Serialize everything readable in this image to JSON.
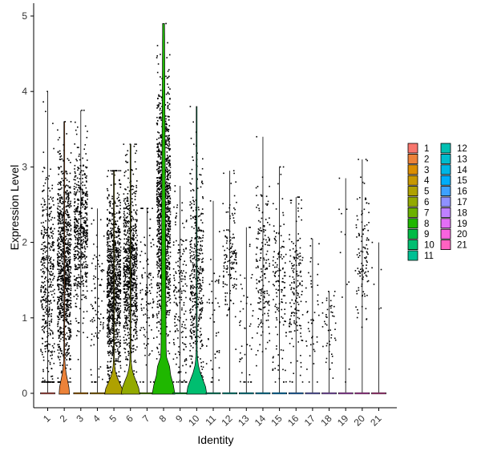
{
  "chart_data": {
    "type": "violin",
    "xlabel": "Identity",
    "ylabel": "Expression Level",
    "ylim": [
      0,
      5
    ],
    "yticks": [
      0,
      1,
      2,
      3,
      4,
      5
    ],
    "categories": [
      "1",
      "2",
      "3",
      "4",
      "5",
      "6",
      "7",
      "8",
      "9",
      "10",
      "11",
      "12",
      "13",
      "14",
      "15",
      "16",
      "17",
      "18",
      "19",
      "20",
      "21"
    ],
    "max_expression": [
      4.0,
      3.6,
      3.75,
      2.45,
      2.95,
      3.3,
      2.45,
      4.9,
      2.75,
      3.8,
      2.55,
      2.95,
      2.2,
      3.4,
      3.0,
      2.6,
      2.05,
      1.35,
      2.85,
      3.1,
      2.0
    ],
    "violin_width": [
      0.0,
      0.3,
      0.0,
      0.0,
      0.55,
      0.55,
      0.0,
      0.6,
      0.0,
      0.6,
      0.0,
      0.0,
      0.0,
      0.0,
      0.0,
      0.0,
      0.0,
      0.0,
      0.0,
      0.0,
      0.0
    ],
    "point_count": [
      420,
      950,
      520,
      90,
      1000,
      820,
      120,
      1150,
      180,
      420,
      45,
      140,
      45,
      170,
      140,
      160,
      45,
      45,
      12,
      110,
      6
    ],
    "point_mean": [
      1.5,
      1.6,
      2.1,
      1.2,
      1.4,
      1.6,
      1.3,
      2.4,
      1.2,
      1.5,
      1.1,
      1.8,
      1.0,
      1.6,
      1.4,
      1.4,
      0.9,
      0.8,
      1.5,
      1.9,
      1.0
    ],
    "point_sd": [
      0.8,
      0.7,
      0.55,
      0.6,
      0.65,
      0.65,
      0.6,
      0.8,
      0.6,
      0.75,
      0.6,
      0.45,
      0.55,
      0.55,
      0.6,
      0.6,
      0.45,
      0.3,
      0.7,
      0.5,
      0.6
    ],
    "colors": [
      "#F8766D",
      "#EC8239",
      "#DB8E00",
      "#C79800",
      "#AFA100",
      "#93AA00",
      "#6BB100",
      "#1FB700",
      "#00BB45",
      "#00BE70",
      "#00C094",
      "#00BFB2",
      "#00BCCD",
      "#00B6E5",
      "#00ADFA",
      "#3DA1FF",
      "#8F91FF",
      "#BF80FF",
      "#E36EF6",
      "#F863DF",
      "#FF62C1"
    ],
    "legend": {
      "position": "right",
      "columns": 2,
      "entries": [
        "1",
        "2",
        "3",
        "4",
        "5",
        "6",
        "7",
        "8",
        "9",
        "10",
        "11",
        "12",
        "13",
        "14",
        "15",
        "16",
        "17",
        "18",
        "19",
        "20",
        "21"
      ]
    }
  }
}
